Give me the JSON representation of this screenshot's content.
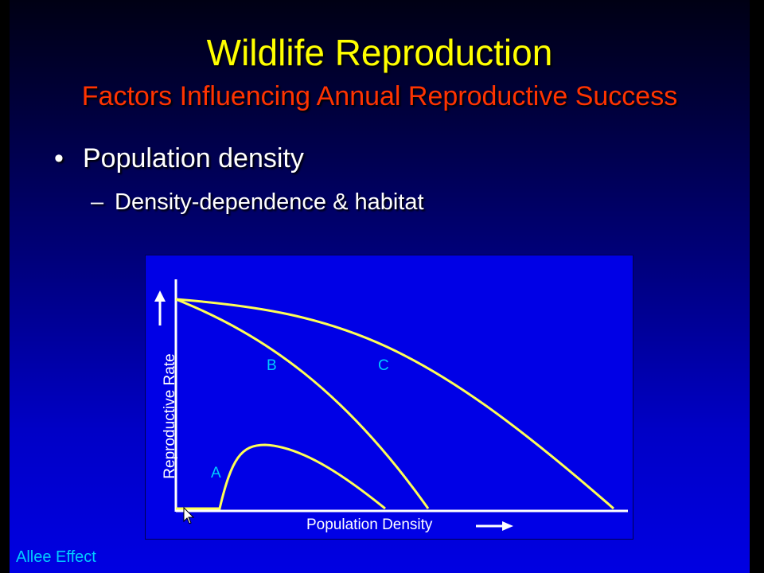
{
  "slide": {
    "title": "Wildlife Reproduction",
    "subtitle": "Factors Influencing Annual Reproductive Success",
    "bullets": [
      {
        "level": 1,
        "marker": "•",
        "text": "Population density"
      },
      {
        "level": 2,
        "marker": "–",
        "text": "Density-dependence & habitat"
      }
    ],
    "footer": "Allee Effect"
  },
  "diagram": {
    "y_axis_label": "Reproductive Rate",
    "x_axis_label": "Population Density",
    "curve_labels": [
      "A",
      "B",
      "C"
    ],
    "icons": [
      "arrow-up-icon",
      "arrow-right-icon",
      "mouse-pointer-icon"
    ]
  },
  "colors": {
    "title": "#ffff00",
    "subtitle": "#ff3300",
    "curves": "#ffff55",
    "curve_labels": "#00ccff",
    "footer": "#00ccff",
    "axes": "#ffffff",
    "figure_background": "#0000e6"
  }
}
